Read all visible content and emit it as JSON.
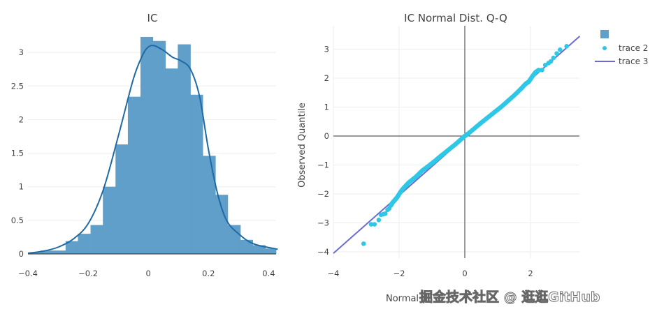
{
  "chart_data": [
    {
      "type": "bar",
      "title": "IC",
      "xlabel": "",
      "ylabel": "",
      "xlim": [
        -0.4,
        0.43
      ],
      "ylim": [
        0,
        3.3
      ],
      "grid": true,
      "xticks": [
        "−0.4",
        "−0.2",
        "0",
        "0.2",
        "0.4"
      ],
      "xtick_values": [
        -0.4,
        -0.2,
        0,
        0.2,
        0.4
      ],
      "yticks": [
        "0",
        "0.5",
        "1",
        "1.5",
        "2",
        "2.5",
        "3"
      ],
      "ytick_values": [
        0,
        0.5,
        1,
        1.5,
        2,
        2.5,
        3
      ],
      "bar_color": "#5f9fc9",
      "kde_color": "#1f6aa5",
      "series": [
        {
          "name": "histogram",
          "bin_edges": [
            -0.4,
            -0.358,
            -0.317,
            -0.275,
            -0.234,
            -0.192,
            -0.151,
            -0.109,
            -0.068,
            -0.026,
            0.015,
            0.057,
            0.098,
            0.14,
            0.181,
            0.223,
            0.264,
            0.306,
            0.347,
            0.389,
            0.43
          ],
          "values": [
            0.02,
            0.05,
            0.05,
            0.19,
            0.3,
            0.43,
            1.0,
            1.63,
            2.34,
            3.23,
            3.17,
            2.76,
            3.12,
            2.37,
            1.46,
            0.88,
            0.43,
            0.21,
            0.13,
            0.08
          ]
        },
        {
          "name": "kde",
          "x": [
            -0.4,
            -0.35,
            -0.3,
            -0.25,
            -0.2,
            -0.15,
            -0.1,
            -0.05,
            -0.02,
            0.0,
            0.02,
            0.05,
            0.08,
            0.11,
            0.14,
            0.17,
            0.2,
            0.23,
            0.26,
            0.3,
            0.35,
            0.43
          ],
          "y": [
            0.01,
            0.04,
            0.1,
            0.22,
            0.45,
            0.95,
            1.75,
            2.6,
            2.95,
            3.08,
            3.1,
            3.03,
            2.93,
            2.87,
            2.75,
            2.35,
            1.55,
            0.9,
            0.5,
            0.3,
            0.15,
            0.07
          ]
        }
      ]
    },
    {
      "type": "scatter",
      "title": "IC Normal Dist. Q-Q",
      "xlabel": "Normal Distribution Quantile",
      "ylabel": "Observed Quantile",
      "xlim": [
        -4,
        3.5
      ],
      "ylim": [
        -4.2,
        3.8
      ],
      "grid": true,
      "xticks": [
        "−4",
        "−2",
        "0",
        "2"
      ],
      "xtick_values": [
        -4,
        -2,
        0,
        2
      ],
      "yticks": [
        "−4",
        "−3",
        "−2",
        "−1",
        "0",
        "1",
        "2",
        "3"
      ],
      "ytick_values": [
        -4,
        -3,
        -2,
        -1,
        0,
        1,
        2,
        3
      ],
      "legend_position": "top-right",
      "series": [
        {
          "name": "",
          "type": "bar-legend-swatch",
          "color": "#5f9fc9"
        },
        {
          "name": "trace 2",
          "type": "scatter",
          "color": "#2ec7e6",
          "x": [
            -3.08,
            -2.85,
            -2.75,
            -2.62,
            -2.55,
            -2.48,
            -2.42,
            -2.35,
            -2.3,
            -2.25,
            -2.2,
            -2.12,
            -2.05,
            -1.95,
            -1.85,
            -1.7,
            -1.5,
            -1.3,
            -1.1,
            -0.9,
            -0.7,
            -0.5,
            -0.3,
            -0.1,
            0.0,
            0.1,
            0.3,
            0.5,
            0.7,
            0.9,
            1.1,
            1.3,
            1.5,
            1.7,
            1.85,
            1.95,
            2.05,
            2.15,
            2.25,
            2.35,
            2.45,
            2.55,
            2.62,
            2.7,
            2.8,
            2.9,
            3.1
          ],
          "y": [
            -3.72,
            -3.05,
            -3.05,
            -2.9,
            -2.72,
            -2.7,
            -2.68,
            -2.55,
            -2.5,
            -2.4,
            -2.3,
            -2.2,
            -2.1,
            -1.92,
            -1.78,
            -1.6,
            -1.42,
            -1.2,
            -1.03,
            -0.85,
            -0.66,
            -0.48,
            -0.3,
            -0.1,
            0.0,
            0.08,
            0.27,
            0.46,
            0.64,
            0.82,
            1.0,
            1.2,
            1.4,
            1.62,
            1.8,
            1.88,
            2.05,
            2.2,
            2.28,
            2.28,
            2.45,
            2.52,
            2.58,
            2.7,
            2.85,
            2.98,
            3.1
          ]
        },
        {
          "name": "trace 3",
          "type": "line",
          "color": "#6a6bd0",
          "x": [
            -4,
            3.5
          ],
          "y": [
            -4.05,
            3.45
          ]
        }
      ]
    }
  ],
  "charts": {
    "left": {
      "title": "IC"
    },
    "right": {
      "title": "IC Normal Dist. Q-Q",
      "xlabel_visible": "Normal",
      "ylabel": "Observed Quantile",
      "legend": [
        {
          "label": ""
        },
        {
          "label": "trace 2"
        },
        {
          "label": "trace 3"
        }
      ]
    }
  },
  "watermark": "掘金技术社区 @ 逛逛GitHub"
}
